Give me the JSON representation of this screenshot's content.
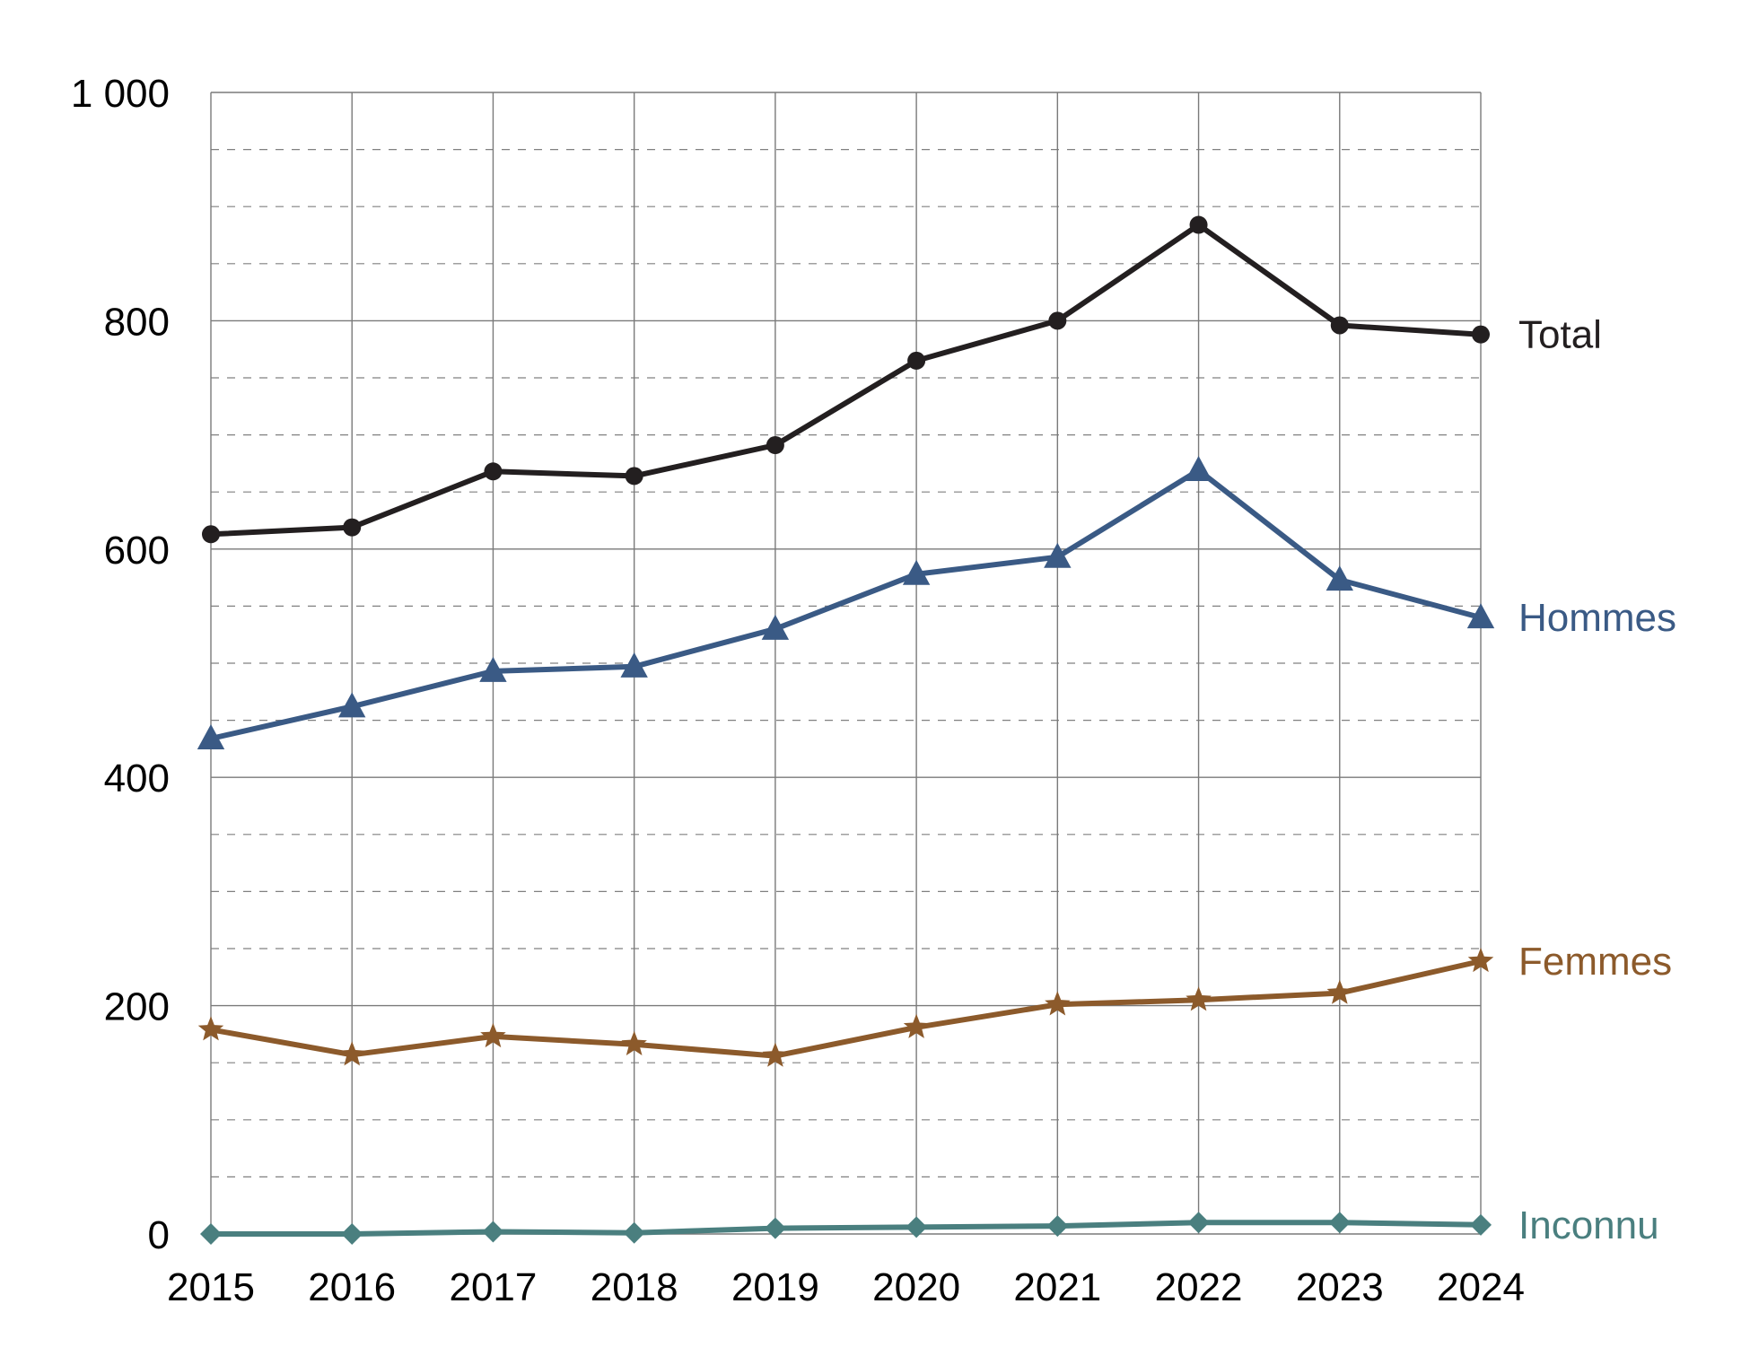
{
  "chart_data": {
    "type": "line",
    "title": "",
    "xlabel": "",
    "ylabel": "",
    "x": [
      "2015",
      "2016",
      "2017",
      "2018",
      "2019",
      "2020",
      "2021",
      "2022",
      "2023",
      "2024"
    ],
    "ylim": [
      0,
      1000
    ],
    "y_major_ticks": [
      0,
      200,
      400,
      600,
      800,
      1000
    ],
    "y_tick_labels": [
      "0",
      "200",
      "400",
      "600",
      "800",
      "1 000"
    ],
    "y_minor_step": 50,
    "grid": true,
    "legend": "inline labels at right end of lines",
    "series": [
      {
        "name": "Total",
        "color": "#231f20",
        "marker": "circle",
        "values": [
          613,
          619,
          668,
          664,
          691,
          765,
          800,
          884,
          796,
          788
        ]
      },
      {
        "name": "Hommes",
        "color": "#3a5a85",
        "marker": "triangle",
        "values": [
          434,
          462,
          493,
          497,
          530,
          578,
          593,
          669,
          573,
          540
        ]
      },
      {
        "name": "Femmes",
        "color": "#8c5a2b",
        "marker": "star",
        "values": [
          179,
          157,
          173,
          166,
          156,
          181,
          201,
          205,
          211,
          239
        ]
      },
      {
        "name": "Inconnu",
        "color": "#4a7f7f",
        "marker": "diamond",
        "values": [
          0,
          0,
          2,
          1,
          5,
          6,
          7,
          10,
          10,
          8
        ]
      }
    ]
  }
}
